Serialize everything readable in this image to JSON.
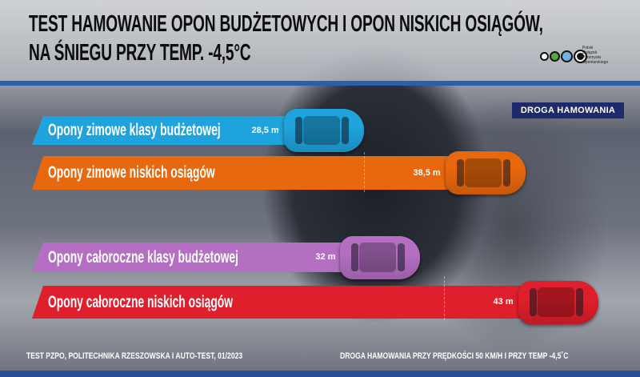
{
  "header": {
    "title_line1": "TEST HAMOWANIE OPON BUDŻETOWYCH I OPON NISKICH OSIĄGÓW,",
    "title_line2": "NA ŚNIEGU PRZY TEMP. -4,5°C"
  },
  "logo": {
    "letters": [
      "Polski",
      "Związek",
      "Przemysłu",
      "Oponiarskiego"
    ],
    "dot_colors": [
      "#ffffff",
      "#5aa83c",
      "#6fb3e6",
      "#111111"
    ]
  },
  "chart_data": {
    "type": "bar",
    "orientation": "horizontal",
    "title": "TEST HAMOWANIE OPON BUDŻETOWYCH I OPON NISKICH OSIĄGÓW, NA ŚNIEGU PRZY TEMP. -4,5°C",
    "legend": "DROGA HAMOWANIA",
    "unit": "m",
    "categories": [
      "Opony zimowe klasy budżetowej",
      "Opony zimowe niskich osiągów",
      "Opony całoroczne klasy budżetowej",
      "Opony całoroczne niskich osiągów"
    ],
    "values": [
      28.5,
      38.5,
      32,
      43
    ],
    "value_labels": [
      "28,5 m",
      "38,5 m",
      "32 m",
      "43 m"
    ],
    "colors": [
      "#1fa3dd",
      "#e8680e",
      "#b46fc2",
      "#df1f2c"
    ],
    "grid": false
  },
  "footer": {
    "source": "TEST PZPO, POLITECHNIKA RZESZOWSKA I AUTO-TEST, 01/2023",
    "note": "DROGA HAMOWANIA PRZY PRĘDKOŚCI 50 KM/H I PRZY TEMP -4,5˚C"
  }
}
